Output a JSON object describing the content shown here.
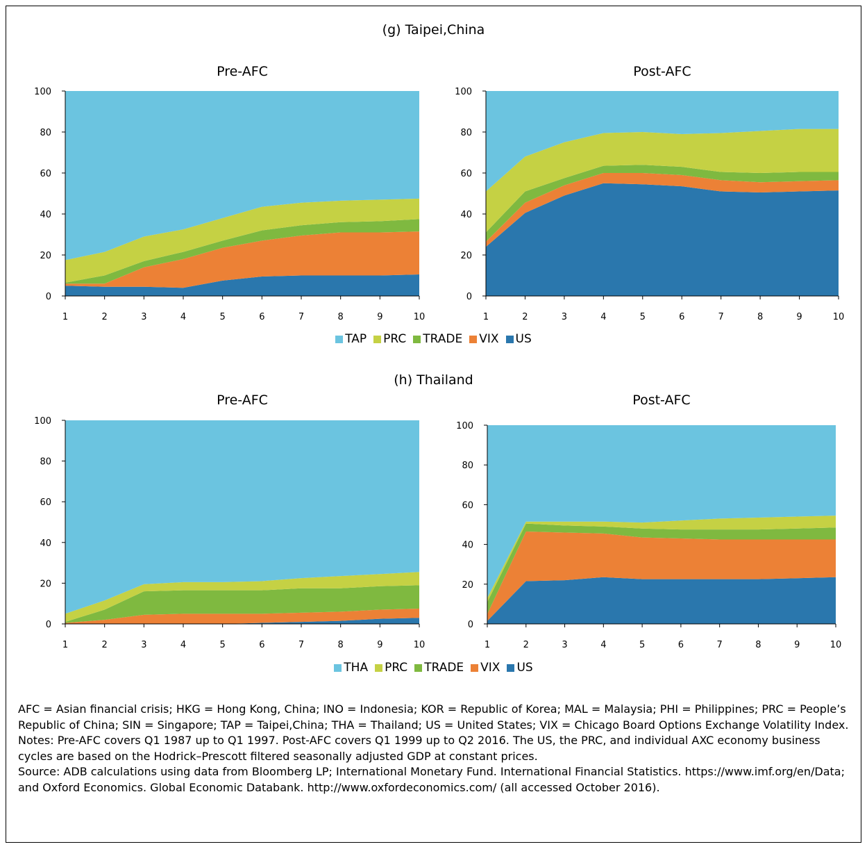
{
  "panels": [
    {
      "title": "(g) Taipei,China",
      "legend": [
        {
          "label": "TAP",
          "color": "#6bc4e0"
        },
        {
          "label": "PRC",
          "color": "#c5d144"
        },
        {
          "label": "TRADE",
          "color": "#7fb940"
        },
        {
          "label": "VIX",
          "color": "#ec8136"
        },
        {
          "label": "US",
          "color": "#2a77ad"
        }
      ]
    },
    {
      "title": "(h) Thailand",
      "legend": [
        {
          "label": "THA",
          "color": "#6bc4e0"
        },
        {
          "label": "PRC",
          "color": "#c5d144"
        },
        {
          "label": "TRADE",
          "color": "#7fb940"
        },
        {
          "label": "VIX",
          "color": "#ec8136"
        },
        {
          "label": "US",
          "color": "#2a77ad"
        }
      ]
    }
  ],
  "chart_data": [
    {
      "type": "area",
      "stacked": true,
      "title": "Pre-AFC",
      "x": [
        1,
        2,
        3,
        4,
        5,
        6,
        7,
        8,
        9,
        10
      ],
      "ylim": [
        0,
        100
      ],
      "yticks": [
        0,
        20,
        40,
        60,
        80,
        100
      ],
      "series": [
        {
          "name": "US",
          "values": [
            5,
            4.5,
            4.5,
            4,
            7.5,
            9.5,
            10,
            10,
            10,
            10.5
          ]
        },
        {
          "name": "VIX",
          "values": [
            1,
            1.5,
            9.5,
            14,
            16,
            17.5,
            19.5,
            21,
            21,
            21
          ]
        },
        {
          "name": "TRADE",
          "values": [
            0.5,
            4,
            3,
            3.5,
            3.5,
            5,
            5,
            5,
            5.5,
            6
          ]
        },
        {
          "name": "PRC",
          "values": [
            11,
            11.5,
            12,
            11,
            11,
            11.5,
            11,
            10.5,
            10.5,
            10
          ]
        },
        {
          "name": "TAP",
          "values": [
            82.5,
            78.5,
            71,
            67.5,
            62,
            56.5,
            54.5,
            53.5,
            53,
            52.5
          ]
        }
      ]
    },
    {
      "type": "area",
      "stacked": true,
      "title": "Post-AFC",
      "x": [
        1,
        2,
        3,
        4,
        5,
        6,
        7,
        8,
        9,
        10
      ],
      "ylim": [
        0,
        100
      ],
      "yticks": [
        0,
        20,
        40,
        60,
        80,
        100
      ],
      "series": [
        {
          "name": "US",
          "values": [
            24,
            40.5,
            49,
            55,
            54.5,
            53.5,
            51,
            50.5,
            51,
            51.5
          ]
        },
        {
          "name": "VIX",
          "values": [
            2.5,
            5,
            5,
            5,
            5.5,
            5.5,
            5.5,
            5,
            5,
            5
          ]
        },
        {
          "name": "TRADE",
          "values": [
            4.5,
            5.5,
            3.5,
            3.5,
            4,
            4,
            4,
            4.5,
            4.5,
            4
          ]
        },
        {
          "name": "PRC",
          "values": [
            20,
            17,
            17.5,
            16,
            16,
            16,
            19,
            20.5,
            21,
            21
          ]
        },
        {
          "name": "TAP",
          "values": [
            49,
            32,
            25,
            20.5,
            20,
            21,
            20.5,
            19.5,
            18.5,
            18.5
          ]
        }
      ]
    },
    {
      "type": "area",
      "stacked": true,
      "title": "Pre-AFC",
      "x": [
        1,
        2,
        3,
        4,
        5,
        6,
        7,
        8,
        9,
        10
      ],
      "ylim": [
        0,
        100
      ],
      "yticks": [
        0,
        20,
        40,
        60,
        80,
        100
      ],
      "series": [
        {
          "name": "US",
          "values": [
            0,
            0,
            0,
            0,
            0,
            0.5,
            1,
            1.5,
            2.5,
            3
          ]
        },
        {
          "name": "VIX",
          "values": [
            0.5,
            2,
            4.5,
            5,
            5,
            4.5,
            4.5,
            4.5,
            4.5,
            4.5
          ]
        },
        {
          "name": "TRADE",
          "values": [
            0.5,
            5,
            11.5,
            11.5,
            11.5,
            11.5,
            12,
            11.5,
            11.5,
            11.5
          ]
        },
        {
          "name": "PRC",
          "values": [
            4,
            4.5,
            3.5,
            4,
            4,
            4.5,
            5,
            6,
            6,
            6.5
          ]
        },
        {
          "name": "THA",
          "values": [
            95,
            88.5,
            80.5,
            79.5,
            79.5,
            79,
            77.5,
            76.5,
            75.5,
            74.5
          ]
        }
      ]
    },
    {
      "type": "area",
      "stacked": true,
      "title": "Post-AFC",
      "x": [
        1,
        2,
        3,
        4,
        5,
        6,
        7,
        8,
        9,
        10
      ],
      "ylim": [
        0,
        100
      ],
      "yticks": [
        0,
        20,
        40,
        60,
        80,
        100
      ],
      "series": [
        {
          "name": "US",
          "values": [
            1.5,
            21.5,
            22,
            23.5,
            22.5,
            22.5,
            22.5,
            22.5,
            23,
            23.5
          ]
        },
        {
          "name": "VIX",
          "values": [
            3.5,
            25,
            24,
            22,
            21,
            20.5,
            20,
            20,
            19.5,
            19
          ]
        },
        {
          "name": "TRADE",
          "values": [
            6,
            4,
            3.5,
            3.5,
            4.5,
            4.5,
            5,
            5,
            5.5,
            6
          ]
        },
        {
          "name": "PRC",
          "values": [
            2,
            1,
            2,
            2.5,
            3,
            4.5,
            5.5,
            6,
            6,
            6
          ]
        },
        {
          "name": "THA",
          "values": [
            87,
            48.5,
            48.5,
            48.5,
            49,
            48,
            47,
            46.5,
            46,
            45.5
          ]
        }
      ]
    }
  ],
  "notes": [
    "AFC = Asian financial crisis; HKG = Hong Kong, China; INO = Indonesia; KOR = Republic of Korea; MAL = Malaysia; PHI = Philippines; PRC = People’s Republic of China; SIN = Singapore; TAP = Taipei,China; THA = Thailand; US = United States; VIX = Chicago Board Options Exchange Volatility Index.",
    "Notes: Pre-AFC covers Q1 1987 up to Q1 1997. Post-AFC covers Q1 1999 up to Q2 2016. The US, the PRC, and individual AXC economy business cycles are based on the Hodrick–Prescott filtered seasonally adjusted GDP at constant prices.",
    "Source: ADB calculations using data from Bloomberg LP; International Monetary Fund. International Financial Statistics. https://www.imf.org/en/Data; and Oxford Economics. Global Economic Databank.  http://www.oxfordeconomics.com/ (all accessed October 2016)."
  ]
}
